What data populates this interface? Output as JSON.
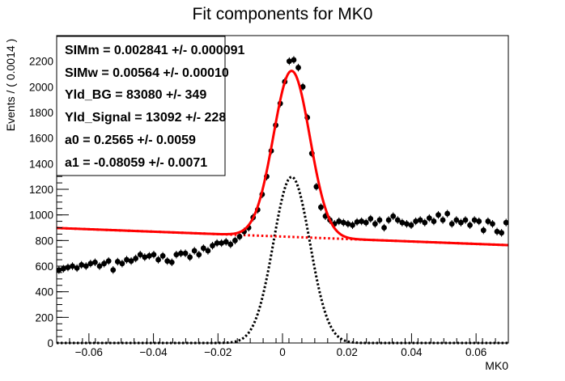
{
  "chart_data": {
    "type": "scatter",
    "title": "Fit components for MK0",
    "xlabel": "MK0",
    "ylabel": "Events / ( 0.0014 )",
    "xlim": [
      -0.07,
      0.07
    ],
    "ylim": [
      0,
      2400
    ],
    "x_ticks": [
      -0.06,
      -0.04,
      -0.02,
      0,
      0.02,
      0.04,
      0.06
    ],
    "x_tick_labels": [
      "−0.06",
      "−0.04",
      "−0.02",
      "0",
      "0.02",
      "0.04",
      "0.06"
    ],
    "y_ticks": [
      0,
      200,
      400,
      600,
      800,
      1000,
      1200,
      1400,
      1600,
      1800,
      2000,
      2200
    ],
    "y_tick_labels": [
      "0",
      "200",
      "400",
      "600",
      "800",
      "1000",
      "1200",
      "1400",
      "1600",
      "1800",
      "2000",
      "2200"
    ],
    "grid": false,
    "stats_box": {
      "position": "top-left",
      "lines": [
        "SIMm =  0.002841 +/- 0.000091",
        "SIMw =  0.00564 +/- 0.00010",
        "Yld_BG =  83080 +/- 349",
        "Yld_Signal =  13092 +/- 228",
        "a0 =  0.2565 +/- 0.0059",
        "a1 = -0.08059 +/- 0.0071"
      ]
    },
    "parameters": {
      "SIMm": 0.002841,
      "SIMw": 0.00564,
      "Yld_BG": 83080,
      "Yld_Signal": 13092,
      "a0": 0.2565,
      "a1": -0.08059
    },
    "series": [
      {
        "kind": "data",
        "color": "#000000",
        "x": [
          -0.0693,
          -0.0679,
          -0.0665,
          -0.0651,
          -0.0637,
          -0.0623,
          -0.0609,
          -0.0595,
          -0.0581,
          -0.0567,
          -0.0553,
          -0.0539,
          -0.0525,
          -0.0511,
          -0.0497,
          -0.0483,
          -0.0469,
          -0.0455,
          -0.0441,
          -0.0427,
          -0.0413,
          -0.0399,
          -0.0385,
          -0.0371,
          -0.0357,
          -0.0343,
          -0.0329,
          -0.0315,
          -0.0301,
          -0.0287,
          -0.0273,
          -0.0259,
          -0.0245,
          -0.0231,
          -0.0217,
          -0.0203,
          -0.0189,
          -0.0175,
          -0.0161,
          -0.0147,
          -0.0133,
          -0.0119,
          -0.0105,
          -0.0091,
          -0.0077,
          -0.0063,
          -0.0049,
          -0.0035,
          -0.0021,
          -0.0007,
          0.0007,
          0.0021,
          0.0035,
          0.0049,
          0.0063,
          0.0077,
          0.0091,
          0.0105,
          0.0119,
          0.0133,
          0.0147,
          0.0161,
          0.0175,
          0.0189,
          0.0203,
          0.0217,
          0.0231,
          0.0245,
          0.0259,
          0.0273,
          0.0287,
          0.0301,
          0.0315,
          0.0329,
          0.0343,
          0.0357,
          0.0371,
          0.0385,
          0.0399,
          0.0413,
          0.0427,
          0.0441,
          0.0455,
          0.0469,
          0.0483,
          0.0497,
          0.0511,
          0.0525,
          0.0539,
          0.0553,
          0.0567,
          0.0581,
          0.0595,
          0.0609,
          0.0623,
          0.0637,
          0.0651,
          0.0665,
          0.0679,
          0.0693
        ],
        "y": [
          570,
          580,
          590,
          600,
          585,
          610,
          600,
          620,
          630,
          600,
          620,
          640,
          570,
          635,
          620,
          650,
          640,
          660,
          690,
          670,
          680,
          690,
          650,
          680,
          640,
          630,
          690,
          700,
          700,
          670,
          720,
          690,
          740,
          720,
          760,
          780,
          780,
          790,
          770,
          800,
          830,
          870,
          900,
          980,
          1040,
          1160,
          1300,
          1500,
          1700,
          1870,
          2040,
          2200,
          2210,
          2150,
          2000,
          1760,
          1480,
          1220,
          1060,
          990,
          960,
          930,
          950,
          940,
          930,
          920,
          945,
          950,
          940,
          970,
          930,
          960,
          900,
          960,
          990,
          960,
          940,
          930,
          920,
          950,
          960,
          940,
          975,
          950,
          1000,
          960,
          1010,
          930,
          960,
          940,
          960,
          920,
          960,
          950,
          880,
          950,
          930,
          870,
          860,
          940
        ],
        "error": 30
      },
      {
        "kind": "total-fit",
        "color": "#ff0000",
        "style": "solid"
      },
      {
        "kind": "background-fit",
        "color": "#ff0000",
        "style": "dotted"
      },
      {
        "kind": "signal-fit",
        "color": "#000000",
        "style": "dotted"
      }
    ]
  }
}
